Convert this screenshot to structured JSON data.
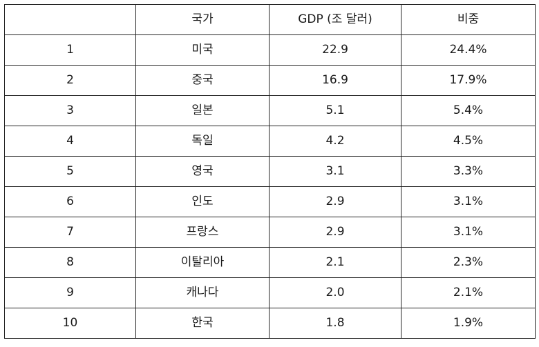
{
  "table": {
    "headers": [
      "",
      "국가",
      "GDP (조 달러)",
      "비중"
    ],
    "rows": [
      [
        "1",
        "미국",
        "22.9",
        "24.4%"
      ],
      [
        "2",
        "중국",
        "16.9",
        "17.9%"
      ],
      [
        "3",
        "일본",
        "5.1",
        "5.4%"
      ],
      [
        "4",
        "독일",
        "4.2",
        "4.5%"
      ],
      [
        "5",
        "영국",
        "3.1",
        "3.3%"
      ],
      [
        "6",
        "인도",
        "2.9",
        "3.1%"
      ],
      [
        "7",
        "프랑스",
        "2.9",
        "3.1%"
      ],
      [
        "8",
        "이탈리아",
        "2.1",
        "2.3%"
      ],
      [
        "9",
        "캐나다",
        "2.0",
        "2.1%"
      ],
      [
        "10",
        "한국",
        "1.8",
        "1.9%"
      ]
    ]
  }
}
